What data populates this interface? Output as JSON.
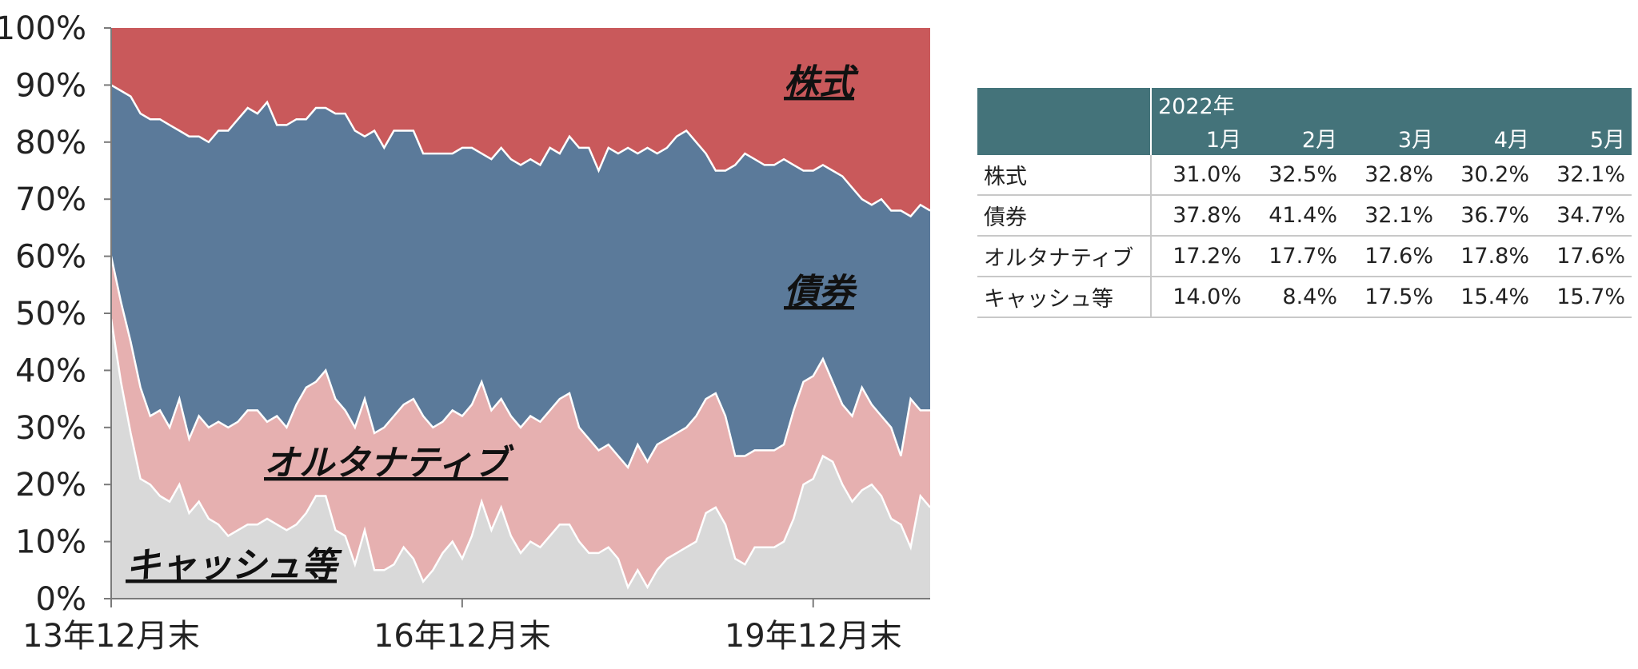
{
  "chart_data": {
    "type": "area",
    "stacked": true,
    "percent": true,
    "ylim": [
      0,
      100
    ],
    "y_ticks": [
      "0%",
      "10%",
      "20%",
      "30%",
      "40%",
      "50%",
      "60%",
      "70%",
      "80%",
      "90%",
      "100%"
    ],
    "x_ticks": [
      "13年12月末",
      "16年12月末",
      "19年12月末"
    ],
    "colors": {
      "cash": "#d9d9d9",
      "alt": "#e6b0b0",
      "bond": "#5b7a9a",
      "equity": "#c9595b",
      "line": "#ffffff"
    },
    "series_labels": {
      "equity": "株式",
      "bond": "債券",
      "alt": "オルタナティブ",
      "cash": "キャッシュ等"
    },
    "cash_cum": [
      49,
      38,
      29,
      21,
      20,
      18,
      17,
      20,
      15,
      17,
      14,
      13,
      11,
      12,
      13,
      13,
      14,
      13,
      12,
      13,
      15,
      18,
      18,
      12,
      11,
      6,
      12,
      5,
      5,
      6,
      9,
      7,
      3,
      5,
      8,
      10,
      7,
      11,
      17,
      12,
      16,
      11,
      8,
      10,
      9,
      11,
      13,
      13,
      10,
      8,
      8,
      9,
      7,
      2,
      5,
      2,
      5,
      7,
      8,
      9,
      10,
      15,
      16,
      13,
      7,
      6,
      9,
      9,
      9,
      10,
      14,
      20,
      21,
      25,
      24,
      20,
      17,
      19,
      20,
      18,
      14,
      13,
      9,
      18,
      16
    ],
    "alt_cum": [
      60,
      52,
      45,
      37,
      32,
      33,
      30,
      35,
      28,
      32,
      30,
      31,
      30,
      31,
      33,
      33,
      31,
      32,
      30,
      34,
      37,
      38,
      40,
      35,
      33,
      30,
      35,
      29,
      30,
      32,
      34,
      35,
      32,
      30,
      31,
      33,
      32,
      34,
      38,
      33,
      35,
      32,
      30,
      32,
      31,
      33,
      35,
      36,
      30,
      28,
      26,
      27,
      25,
      23,
      27,
      24,
      27,
      28,
      29,
      30,
      32,
      35,
      36,
      32,
      25,
      25,
      26,
      26,
      26,
      27,
      33,
      38,
      39,
      42,
      38,
      34,
      32,
      37,
      34,
      32,
      30,
      25,
      35,
      33,
      33
    ],
    "bond_cum": [
      90,
      89,
      88,
      85,
      84,
      84,
      83,
      82,
      81,
      81,
      80,
      82,
      82,
      84,
      86,
      85,
      87,
      83,
      83,
      84,
      84,
      86,
      86,
      85,
      85,
      82,
      81,
      82,
      79,
      82,
      82,
      82,
      78,
      78,
      78,
      78,
      79,
      79,
      78,
      77,
      79,
      77,
      76,
      77,
      76,
      79,
      78,
      81,
      79,
      79,
      75,
      79,
      78,
      79,
      78,
      79,
      78,
      79,
      81,
      82,
      80,
      78,
      75,
      75,
      76,
      78,
      77,
      76,
      76,
      77,
      76,
      75,
      75,
      76,
      75,
      74,
      72,
      70,
      69,
      70,
      68,
      68,
      67,
      69,
      68
    ]
  },
  "table": {
    "year_header": "2022年",
    "months": [
      "1月",
      "2月",
      "3月",
      "4月",
      "5月"
    ],
    "rows": [
      {
        "label": "株式",
        "values": [
          "31.0%",
          "32.5%",
          "32.8%",
          "30.2%",
          "32.1%"
        ]
      },
      {
        "label": "債券",
        "values": [
          "37.8%",
          "41.4%",
          "32.1%",
          "36.7%",
          "34.7%"
        ]
      },
      {
        "label": "オルタナティブ",
        "values": [
          "17.2%",
          "17.7%",
          "17.6%",
          "17.8%",
          "17.6%"
        ]
      },
      {
        "label": "キャッシュ等",
        "values": [
          "14.0%",
          "8.4%",
          "17.5%",
          "15.4%",
          "15.7%"
        ]
      }
    ]
  }
}
